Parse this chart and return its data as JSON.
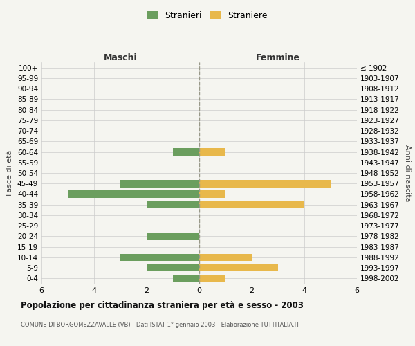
{
  "age_groups": [
    "100+",
    "95-99",
    "90-94",
    "85-89",
    "80-84",
    "75-79",
    "70-74",
    "65-69",
    "60-64",
    "55-59",
    "50-54",
    "45-49",
    "40-44",
    "35-39",
    "30-34",
    "25-29",
    "20-24",
    "15-19",
    "10-14",
    "5-9",
    "0-4"
  ],
  "birth_years": [
    "≤ 1902",
    "1903-1907",
    "1908-1912",
    "1913-1917",
    "1918-1922",
    "1923-1927",
    "1928-1932",
    "1933-1937",
    "1938-1942",
    "1943-1947",
    "1948-1952",
    "1953-1957",
    "1958-1962",
    "1963-1967",
    "1968-1972",
    "1973-1977",
    "1978-1982",
    "1983-1987",
    "1988-1992",
    "1993-1997",
    "1998-2002"
  ],
  "maschi": [
    0,
    0,
    0,
    0,
    0,
    0,
    0,
    0,
    1,
    0,
    0,
    3,
    5,
    2,
    0,
    0,
    2,
    0,
    3,
    2,
    1
  ],
  "femmine": [
    0,
    0,
    0,
    0,
    0,
    0,
    0,
    0,
    1,
    0,
    0,
    5,
    1,
    4,
    0,
    0,
    0,
    0,
    2,
    3,
    1
  ],
  "color_maschi": "#6b9e5e",
  "color_femmine": "#e8b84b",
  "background_color": "#f5f5f0",
  "grid_color": "#cccccc",
  "title": "Popolazione per cittadinanza straniera per età e sesso - 2003",
  "subtitle": "COMUNE DI BORGOMEZZAVALLE (VB) - Dati ISTAT 1° gennaio 2003 - Elaborazione TUTTITALIA.IT",
  "xlabel_left": "Maschi",
  "xlabel_right": "Femmine",
  "ylabel_left": "Fasce di età",
  "ylabel_right": "Anni di nascita",
  "legend_stranieri": "Stranieri",
  "legend_straniere": "Straniere",
  "xlim": 6,
  "bar_height": 0.7
}
